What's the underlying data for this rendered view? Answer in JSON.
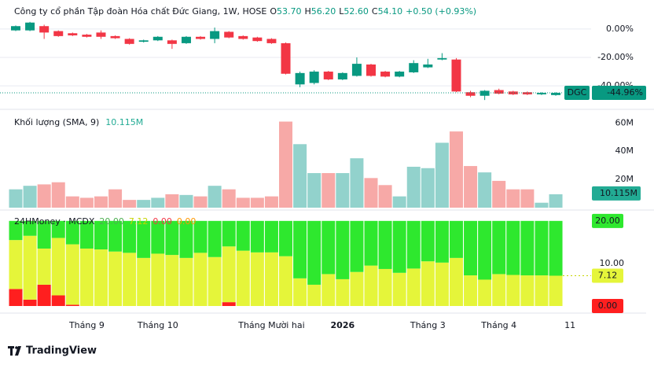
{
  "chart_data": [
    {
      "type": "candlestick",
      "title": "Công ty cổ phần Tập đoàn Hóa chất Đức Giang, 1W, HOSE",
      "ohlc_legend": [
        {
          "key": "O",
          "value": "53.70"
        },
        {
          "key": "H",
          "value": "56.20"
        },
        {
          "key": "L",
          "value": "52.60"
        },
        {
          "key": "C",
          "value": "54.10"
        }
      ],
      "change": "+0.50 (+0.93%)",
      "open": [
        -1,
        -1,
        2,
        -1.5,
        -3,
        -4,
        -2.5,
        -5,
        -7,
        -9,
        -8,
        -8,
        -10,
        -5.5,
        -7,
        -2,
        -5,
        -6,
        -7,
        -10,
        -39,
        -38,
        -30,
        -35.5,
        -33,
        -25,
        -30,
        -33.5,
        -30.5,
        -27,
        -21.5,
        -21.5,
        -44.5,
        -47,
        -43,
        -44,
        -44.5,
        -46,
        -46.5
      ],
      "high": [
        2.5,
        5,
        3,
        -1,
        -2.5,
        -3.5,
        -1,
        -4.5,
        -6.5,
        -7.5,
        -5,
        -7.5,
        -5,
        -5,
        1,
        -1.5,
        -4.5,
        -5.5,
        -6.5,
        -9.5,
        -30,
        -29,
        -29.5,
        -30.5,
        -20,
        -24.5,
        -29.5,
        -29.5,
        -22,
        -21,
        -17,
        -20.5,
        -43.5,
        -43,
        -42,
        -43.5,
        -44,
        -44.5,
        -44.5
      ],
      "low": [
        -1.5,
        -1.5,
        -7,
        -5.5,
        -5,
        -6,
        -7,
        -7,
        -11,
        -9.5,
        -8.5,
        -14,
        -10.5,
        -7.5,
        -10,
        -6.5,
        -7.5,
        -9,
        -10.5,
        -32,
        -41,
        -39,
        -36,
        -36,
        -33.5,
        -33.5,
        -34,
        -34,
        -31,
        -27.5,
        -22,
        -44.5,
        -48,
        -50,
        -46,
        -46.5,
        -46.5,
        -46.5,
        -47
      ],
      "close": [
        2,
        4.5,
        -2.5,
        -5,
        -4.5,
        -5.5,
        -5.5,
        -6.5,
        -10.5,
        -8,
        -5.5,
        -10.5,
        -5.5,
        -7,
        -1.5,
        -6,
        -7,
        -8.5,
        -10,
        -31.5,
        -31,
        -30,
        -35.5,
        -31,
        -24.5,
        -33,
        -33.5,
        -30,
        -24,
        -25,
        -20.5,
        -44,
        -47,
        -43.5,
        -45.5,
        -46,
        -46,
        -45,
        -44.96
      ],
      "up_color": "#089981",
      "down_color": "#f23645",
      "ylim": [
        -56,
        6
      ],
      "yticks": [
        {
          "value": 0,
          "label": "0.00%"
        },
        {
          "value": -20,
          "label": "-20.00%"
        },
        {
          "value": -40,
          "label": "-40.00%"
        }
      ],
      "symbol": "DGC",
      "last": {
        "value": -44.96,
        "label": "-44.96%"
      }
    },
    {
      "type": "bar",
      "title": "Khối lượng (SMA, 9)",
      "sma": {
        "value": 10.115,
        "label": "10.115M"
      },
      "values": [
        13,
        15.5,
        16.5,
        18,
        8,
        7,
        8,
        13,
        5.5,
        5.5,
        7,
        9.5,
        9,
        8,
        15.5,
        13,
        7,
        7,
        8,
        61,
        45,
        24.5,
        24.5,
        24.5,
        35,
        21,
        16,
        8,
        29,
        28,
        46,
        54,
        29.5,
        25,
        19,
        13,
        13,
        3.5,
        9.5
      ],
      "up_color": "#92d2cc",
      "down_color": "#f7a9a7",
      "sma_color": "#22ab94",
      "ylim": [
        0,
        68
      ],
      "yticks": [
        {
          "value": 20,
          "label": "20M"
        },
        {
          "value": 40,
          "label": "40M"
        },
        {
          "value": 60,
          "label": "60M"
        }
      ]
    },
    {
      "type": "stacked_bar",
      "title": "24HMoney · MCDX",
      "legend_values": [
        {
          "label": "20.00",
          "color": "#4caf50"
        },
        {
          "label": "7.12",
          "color": "#c6d400"
        },
        {
          "label": "0.00",
          "color": "#f23645"
        },
        {
          "label": "0.00",
          "color": "#ff9800"
        }
      ],
      "series": [
        {
          "color": "#ff1f1f",
          "values": [
            4,
            1.5,
            5,
            2.5,
            0.3,
            0,
            0,
            0,
            0,
            0,
            0,
            0,
            0,
            0,
            0,
            0.9,
            0,
            0,
            0,
            0,
            0,
            0,
            0,
            0,
            0,
            0,
            0,
            0,
            0,
            0,
            0,
            0,
            0,
            0,
            0,
            0,
            0,
            0,
            0
          ]
        },
        {
          "color": "#e5f53a",
          "values": [
            11.5,
            15,
            8.5,
            13.5,
            14.2,
            13.5,
            13.3,
            12.8,
            12.5,
            11.3,
            12.3,
            12,
            11.3,
            12.5,
            11.5,
            13.1,
            13,
            12.6,
            12.6,
            11.7,
            6.5,
            5,
            7.5,
            6.3,
            8,
            9.5,
            8.7,
            7.8,
            8.8,
            10.5,
            10.2,
            11.3,
            7.2,
            6.2,
            7.5,
            7.3,
            7.2,
            7.2,
            7.12
          ]
        },
        {
          "color": "#2ee82e",
          "values": [
            4.5,
            3.5,
            6.5,
            4,
            5.5,
            6.5,
            6.7,
            7.2,
            7.5,
            8.7,
            7.7,
            8,
            8.7,
            7.5,
            8.5,
            6,
            7,
            7.4,
            7.4,
            8.3,
            13.5,
            15,
            12.5,
            13.7,
            12,
            10.5,
            11.3,
            12.2,
            11.2,
            9.5,
            9.8,
            8.7,
            12.8,
            13.8,
            12.5,
            12.7,
            12.8,
            12.8,
            12.88
          ]
        }
      ],
      "ylim": [
        0,
        22
      ],
      "yticks": [
        {
          "value": 10,
          "label": "10.00"
        }
      ],
      "badges": [
        {
          "value": 20,
          "label": "20.00",
          "color": "#2ee82e"
        },
        {
          "value": 7.12,
          "label": "7.12",
          "color": "#e5f53a"
        },
        {
          "value": 0,
          "label": "0.00",
          "color": "#ff1f1f"
        }
      ]
    }
  ],
  "x_axis": {
    "xticks": [
      {
        "value": 5,
        "label": "Tháng 9"
      },
      {
        "value": 10,
        "label": "Tháng 10"
      },
      {
        "value": 18,
        "label": "Tháng Mười hai"
      },
      {
        "value": 23,
        "label": "2026"
      },
      {
        "value": 29,
        "label": "Tháng 3"
      },
      {
        "value": 34,
        "label": "Tháng 4"
      },
      {
        "value": 39,
        "label": "11"
      }
    ]
  },
  "branding": "TradingView"
}
